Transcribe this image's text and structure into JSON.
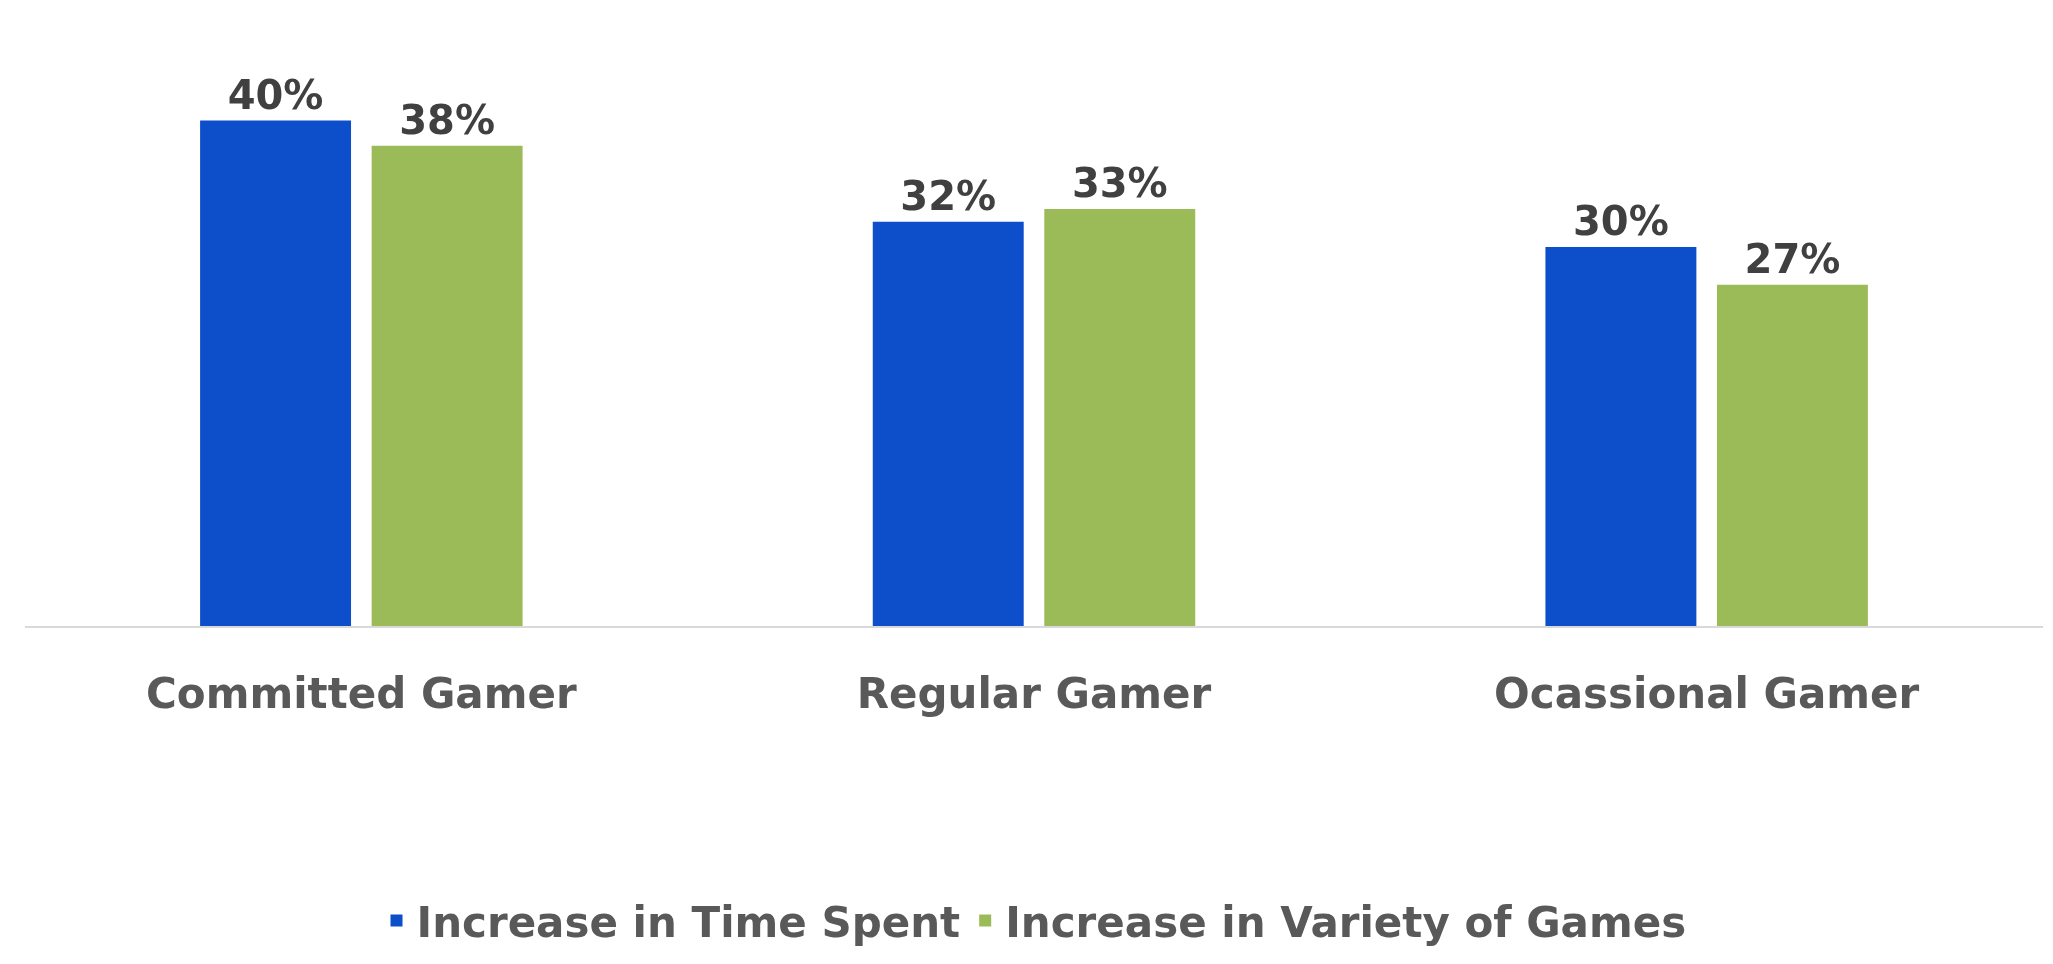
{
  "chart_data": {
    "type": "bar",
    "categories": [
      "Committed Gamer",
      "Regular Gamer",
      "Ocassional Gamer"
    ],
    "series": [
      {
        "name": "Increase in Time Spent",
        "color": "#0d4ecb",
        "values": [
          40,
          32,
          30
        ],
        "value_labels": [
          "40%",
          "32%",
          "30%"
        ]
      },
      {
        "name": "Increase in Variety of Games",
        "color": "#9bbb59",
        "values": [
          38,
          33,
          27
        ],
        "value_labels": [
          "38%",
          "33%",
          "27%"
        ]
      }
    ],
    "legend": "bottom"
  }
}
